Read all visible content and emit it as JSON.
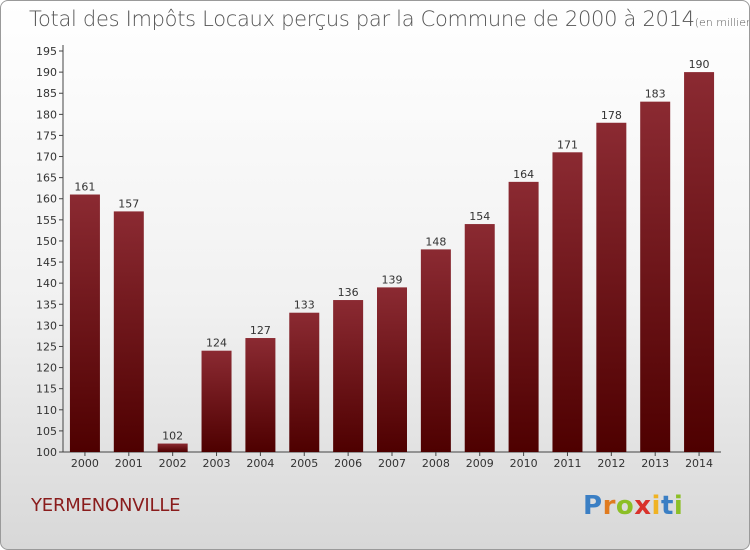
{
  "title": "Total des Impôts Locaux perçus par la Commune de 2000 à 2014",
  "unit_label": "(en milliers d'€)",
  "commune": "YERMENONVILLE",
  "logo": {
    "letters": [
      "P",
      "r",
      "o",
      "x",
      "i",
      "t",
      "i"
    ],
    "colors": [
      "#3b7fc4",
      "#e07b1f",
      "#8cbf26",
      "#d9322b",
      "#f0b323",
      "#3b7fc4",
      "#8cbf26"
    ]
  },
  "colors": {
    "bar_top": "#8b2a32",
    "bar_bottom": "#4e0000",
    "commune": "#8a1c1c"
  },
  "chart_data": {
    "type": "bar",
    "title": "Total des Impôts Locaux perçus par la Commune de 2000 à 2014",
    "categories": [
      "2000",
      "2001",
      "2002",
      "2003",
      "2004",
      "2005",
      "2006",
      "2007",
      "2008",
      "2009",
      "2010",
      "2011",
      "2012",
      "2013",
      "2014"
    ],
    "values": [
      161,
      157,
      102,
      124,
      127,
      133,
      136,
      139,
      148,
      154,
      164,
      171,
      178,
      183,
      190
    ],
    "ylim": [
      100,
      195
    ],
    "yticks": [
      100,
      105,
      110,
      115,
      120,
      125,
      130,
      135,
      140,
      145,
      150,
      155,
      160,
      165,
      170,
      175,
      180,
      185,
      190,
      195
    ],
    "grid": false,
    "data_labels": true
  }
}
